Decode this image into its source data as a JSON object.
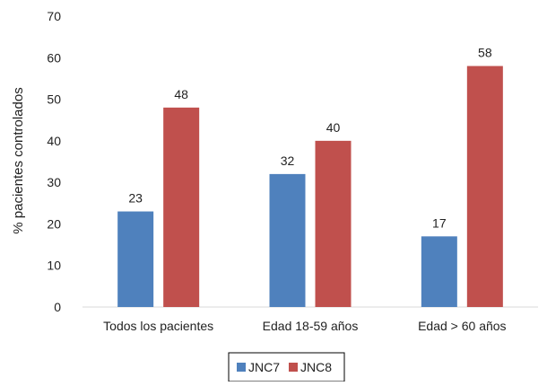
{
  "chart_data": {
    "type": "bar",
    "title": "",
    "xlabel": "",
    "ylabel": "% pacientes controlados",
    "ylim": [
      0,
      70
    ],
    "yticks": [
      0,
      10,
      20,
      30,
      40,
      50,
      60,
      70
    ],
    "grid": false,
    "legend_position": "bottom",
    "categories": [
      "Todos los pacientes",
      "Edad 18-59 años",
      "Edad > 60 años"
    ],
    "series": [
      {
        "name": "JNC7",
        "color": "#4f81bd",
        "values": [
          23,
          32,
          17
        ]
      },
      {
        "name": "JNC8",
        "color": "#c0504d",
        "values": [
          48,
          40,
          58
        ]
      }
    ],
    "data_labels": true
  }
}
